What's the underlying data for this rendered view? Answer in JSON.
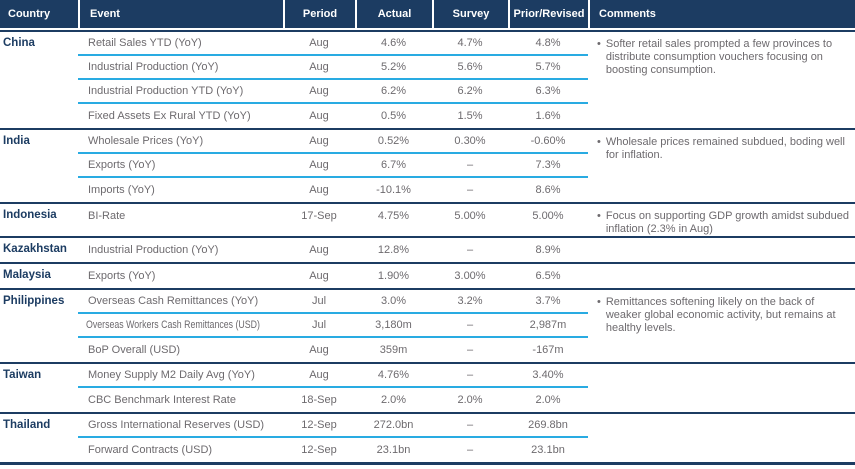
{
  "header": {
    "columns": [
      "Country",
      "Event",
      "Period",
      "Actual",
      "Survey",
      "Prior/Revised",
      "Comments"
    ]
  },
  "bullet": "•",
  "colors": {
    "navy": "#1C3C62",
    "light_blue": "#29ABE2",
    "text_gray": "#6D6A6E",
    "header_text": "#FFFFFF"
  },
  "groups": [
    {
      "country": "China",
      "comment": "Softer retail sales prompted a few provinces to distribute consumption vouchers focusing on boosting consumption.",
      "rows": [
        {
          "event": "Retail Sales YTD (YoY)",
          "period": "Aug",
          "actual": "4.6%",
          "survey": "4.7%",
          "prior": "4.8%"
        },
        {
          "event": "Industrial Production (YoY)",
          "period": "Aug",
          "actual": "5.2%",
          "survey": "5.6%",
          "prior": "5.7%"
        },
        {
          "event": "Industrial Production YTD (YoY)",
          "period": "Aug",
          "actual": "6.2%",
          "survey": "6.2%",
          "prior": "6.3%"
        },
        {
          "event": "Fixed Assets Ex Rural YTD (YoY)",
          "period": "Aug",
          "actual": "0.5%",
          "survey": "1.5%",
          "prior": "1.6%"
        }
      ]
    },
    {
      "country": "India",
      "comment": "Wholesale prices remained subdued, boding well for inflation.",
      "rows": [
        {
          "event": "Wholesale Prices (YoY)",
          "period": "Aug",
          "actual": "0.52%",
          "survey": "0.30%",
          "prior": "-0.60%"
        },
        {
          "event": "Exports (YoY)",
          "period": "Aug",
          "actual": "6.7%",
          "survey": "–",
          "prior": "7.3%"
        },
        {
          "event": "Imports (YoY)",
          "period": "Aug",
          "actual": "-10.1%",
          "survey": "–",
          "prior": "8.6%"
        }
      ]
    },
    {
      "country": "Indonesia",
      "comment": "Focus on supporting GDP growth amidst subdued inflation (2.3% in Aug)",
      "rows": [
        {
          "event": "BI-Rate",
          "period": "17-Sep",
          "actual": "4.75%",
          "survey": "5.00%",
          "prior": "5.00%"
        }
      ]
    },
    {
      "country": "Kazakhstan",
      "comment": "",
      "rows": [
        {
          "event": "Industrial Production (YoY)",
          "period": "Aug",
          "actual": "12.8%",
          "survey": "–",
          "prior": "8.9%"
        }
      ]
    },
    {
      "country": "Malaysia",
      "comment": "",
      "rows": [
        {
          "event": "Exports (YoY)",
          "period": "Aug",
          "actual": "1.90%",
          "survey": "3.00%",
          "prior": "6.5%"
        }
      ]
    },
    {
      "country": "Philippines",
      "comment": "Remittances softening likely on the back of weaker global economic activity, but remains at healthy levels.",
      "rows": [
        {
          "event": "Overseas Cash Remittances (YoY)",
          "period": "Jul",
          "actual": "3.0%",
          "survey": "3.2%",
          "prior": "3.7%"
        },
        {
          "event": "Overseas Workers Cash Remittances (USD)",
          "period": "Jul",
          "actual": "3,180m",
          "survey": "–",
          "prior": "2,987m"
        },
        {
          "event": "BoP Overall (USD)",
          "period": "Aug",
          "actual": "359m",
          "survey": "–",
          "prior": "-167m"
        }
      ]
    },
    {
      "country": "Taiwan",
      "comment": "",
      "rows": [
        {
          "event": "Money Supply M2 Daily Avg (YoY)",
          "period": "Aug",
          "actual": "4.76%",
          "survey": "–",
          "prior": "3.40%"
        },
        {
          "event": "CBC Benchmark Interest Rate",
          "period": "18-Sep",
          "actual": "2.0%",
          "survey": "2.0%",
          "prior": "2.0%"
        }
      ]
    },
    {
      "country": "Thailand",
      "comment": "",
      "rows": [
        {
          "event": "Gross International Reserves (USD)",
          "period": "12-Sep",
          "actual": "272.0bn",
          "survey": "–",
          "prior": "269.8bn"
        },
        {
          "event": "Forward Contracts (USD)",
          "period": "12-Sep",
          "actual": "23.1bn",
          "survey": "–",
          "prior": "23.1bn"
        }
      ]
    }
  ]
}
